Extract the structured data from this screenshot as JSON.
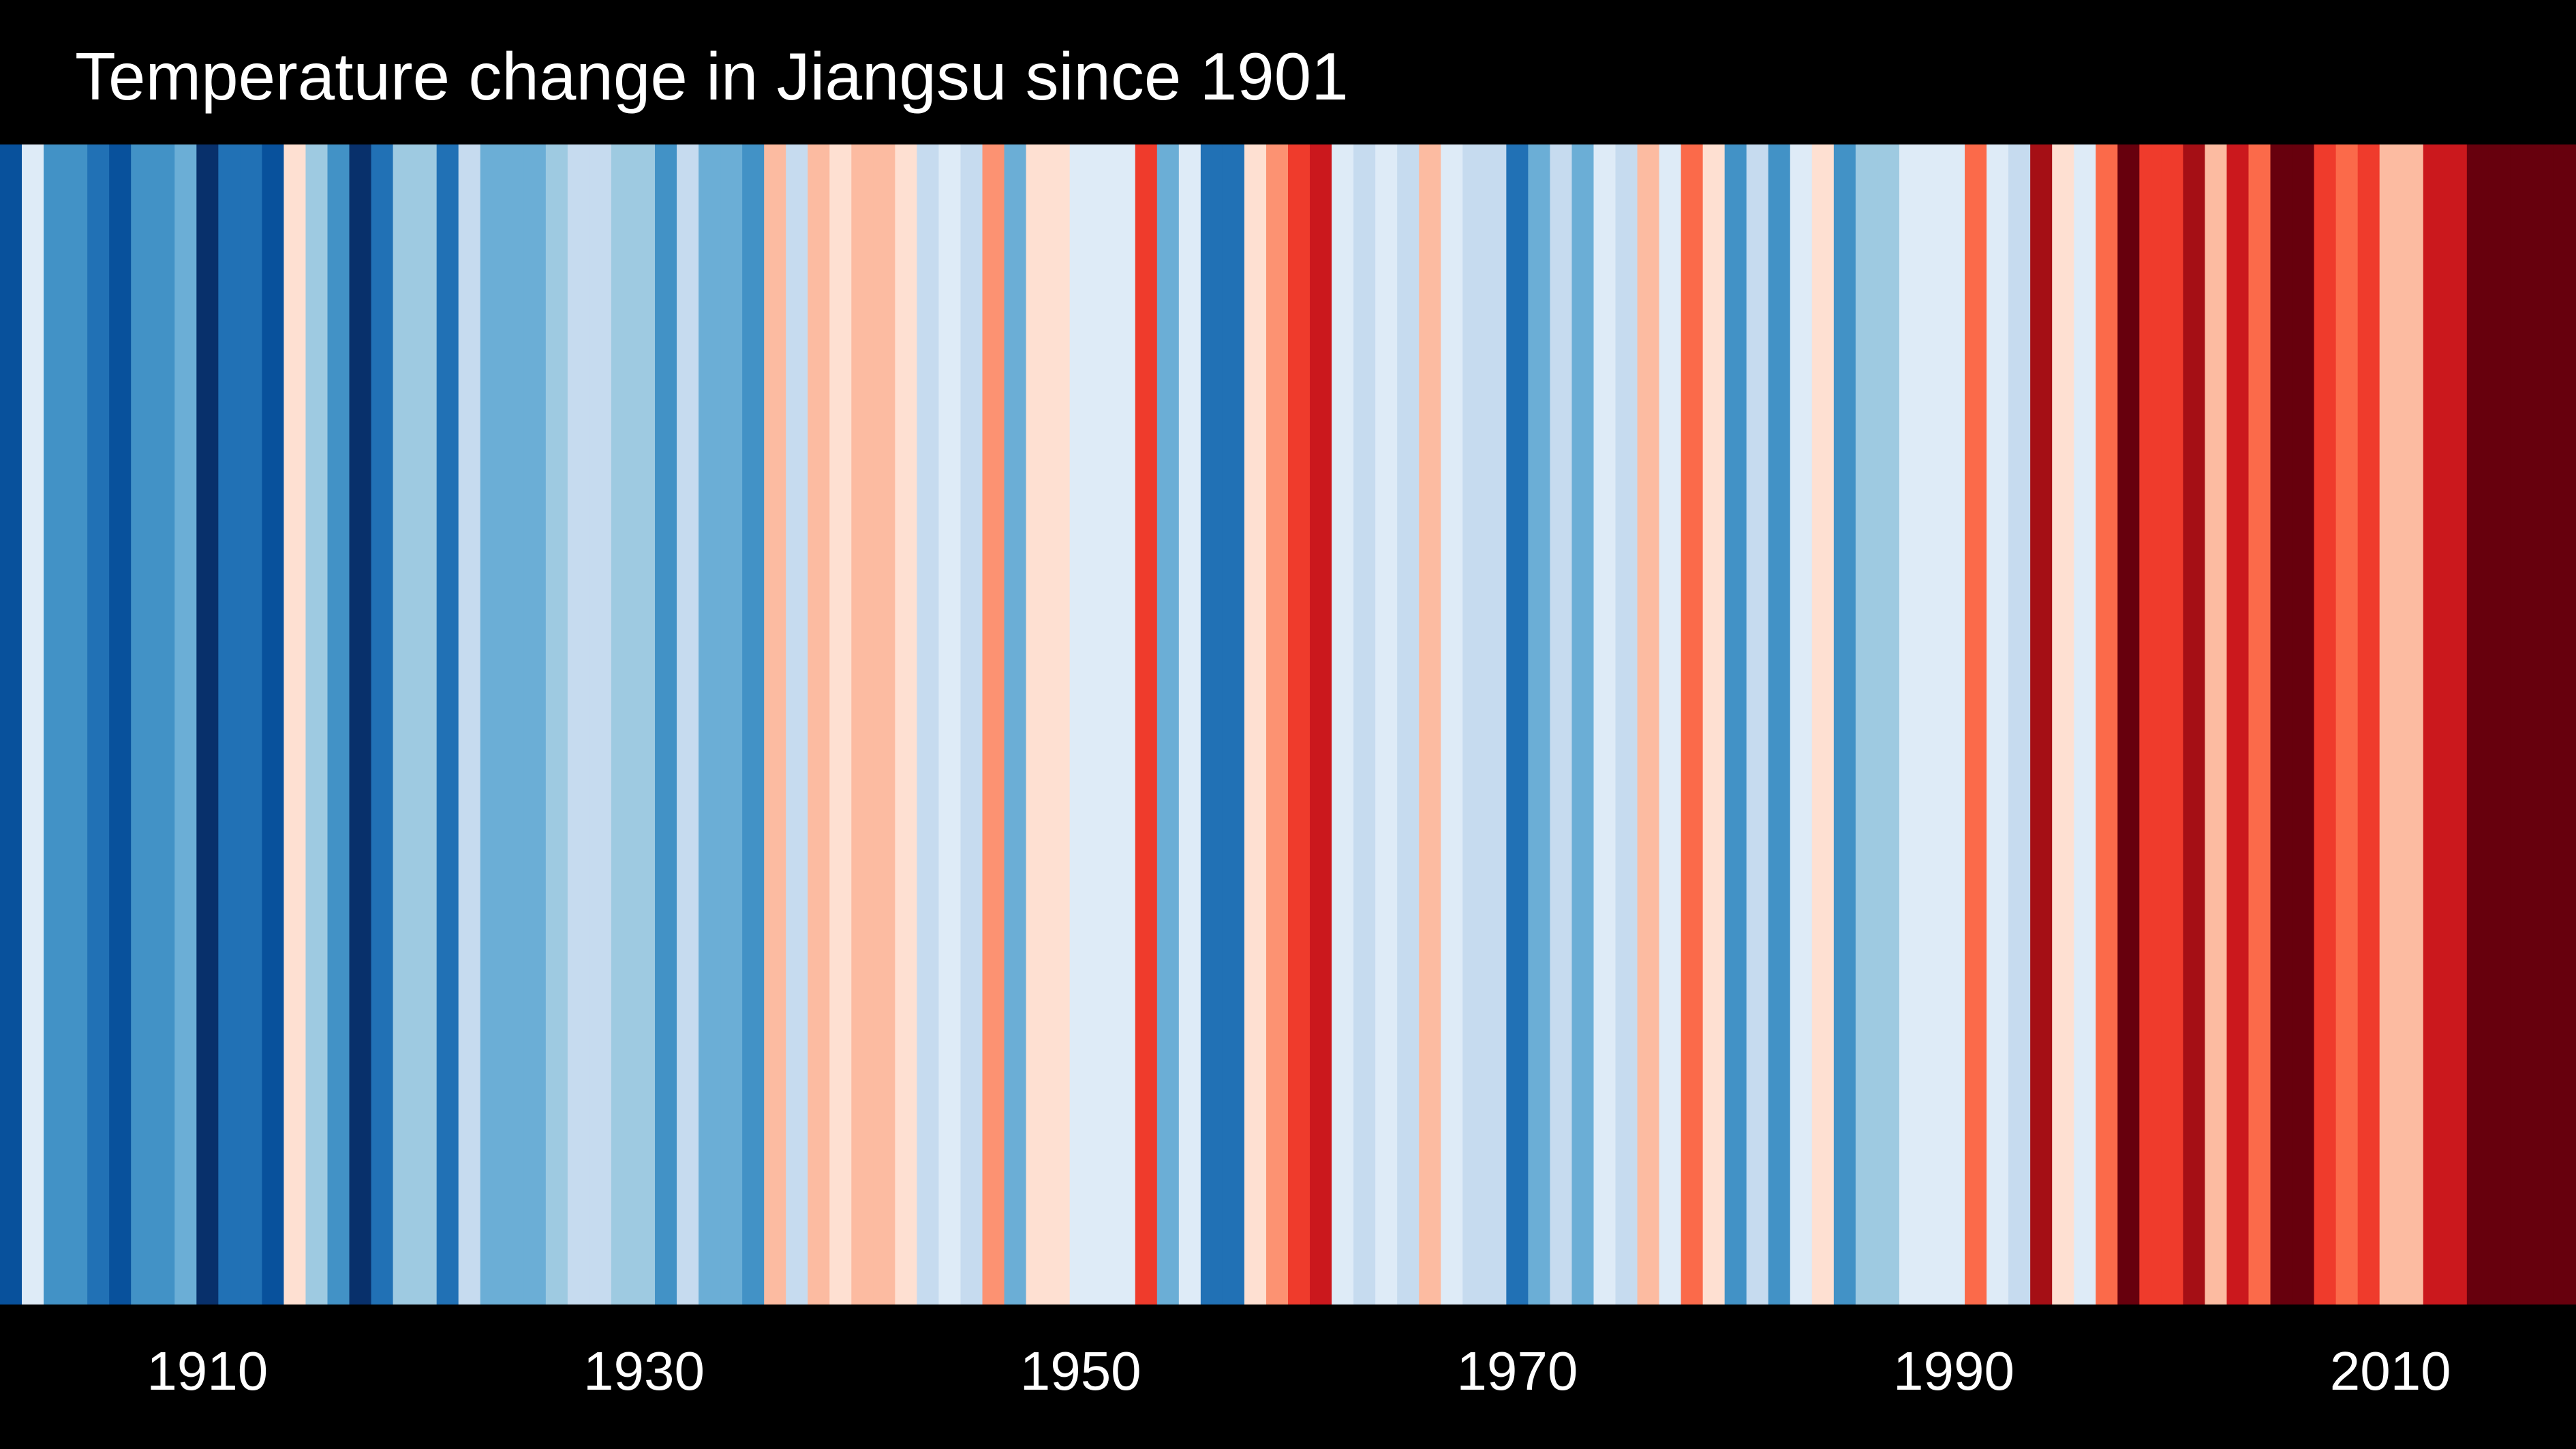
{
  "chart_data": {
    "type": "bar",
    "title": "Temperature change in Jiangsu since 1901",
    "x": [
      1901,
      1902,
      1903,
      1904,
      1905,
      1906,
      1907,
      1908,
      1909,
      1910,
      1911,
      1912,
      1913,
      1914,
      1915,
      1916,
      1917,
      1918,
      1919,
      1920,
      1921,
      1922,
      1923,
      1924,
      1925,
      1926,
      1927,
      1928,
      1929,
      1930,
      1931,
      1932,
      1933,
      1934,
      1935,
      1936,
      1937,
      1938,
      1939,
      1940,
      1941,
      1942,
      1943,
      1944,
      1945,
      1946,
      1947,
      1948,
      1949,
      1950,
      1951,
      1952,
      1953,
      1954,
      1955,
      1956,
      1957,
      1958,
      1959,
      1960,
      1961,
      1962,
      1963,
      1964,
      1965,
      1966,
      1967,
      1968,
      1969,
      1970,
      1971,
      1972,
      1973,
      1974,
      1975,
      1976,
      1977,
      1978,
      1979,
      1980,
      1981,
      1982,
      1983,
      1984,
      1985,
      1986,
      1987,
      1988,
      1989,
      1990,
      1991,
      1992,
      1993,
      1994,
      1995,
      1996,
      1997,
      1998,
      1999,
      2000,
      2001,
      2002,
      2003,
      2004,
      2005,
      2006,
      2007,
      2008,
      2009,
      2010,
      2011,
      2012,
      2013,
      2014,
      2015,
      2016,
      2017,
      2018
    ],
    "colors": [
      "#08519c",
      "#deebf7",
      "#4292c6",
      "#4292c6",
      "#2171b5",
      "#08519c",
      "#4292c6",
      "#4292c6",
      "#6baed6",
      "#08306b",
      "#2171b5",
      "#2171b5",
      "#08519c",
      "#fee0d2",
      "#9ecae1",
      "#4292c6",
      "#08306b",
      "#2171b5",
      "#9ecae1",
      "#9ecae1",
      "#2171b5",
      "#c6dbef",
      "#6baed6",
      "#6baed6",
      "#6baed6",
      "#9ecae1",
      "#c6dbef",
      "#c6dbef",
      "#9ecae1",
      "#9ecae1",
      "#4292c6",
      "#c6dbef",
      "#6baed6",
      "#6baed6",
      "#4292c6",
      "#fcbba1",
      "#c6dbef",
      "#fcbba1",
      "#fee0d2",
      "#fcbba1",
      "#fcbba1",
      "#fee0d2",
      "#c6dbef",
      "#deebf7",
      "#c6dbef",
      "#fc9272",
      "#6baed6",
      "#fee0d2",
      "#fee0d2",
      "#deebf7",
      "#deebf7",
      "#deebf7",
      "#ef3b2c",
      "#6baed6",
      "#deebf7",
      "#2171b5",
      "#2171b5",
      "#fee0d2",
      "#fc9272",
      "#ef3b2c",
      "#cb181d",
      "#deebf7",
      "#c6dbef",
      "#deebf7",
      "#c6dbef",
      "#fcbba1",
      "#deebf7",
      "#c6dbef",
      "#c6dbef",
      "#2171b5",
      "#6baed6",
      "#c6dbef",
      "#6baed6",
      "#deebf7",
      "#c6dbef",
      "#fcbba1",
      "#deebf7",
      "#fb6a4a",
      "#fee0d2",
      "#4292c6",
      "#c6dbef",
      "#4292c6",
      "#deebf7",
      "#fee0d2",
      "#4292c6",
      "#9ecae1",
      "#9ecae1",
      "#deebf7",
      "#deebf7",
      "#deebf7",
      "#fb6a4a",
      "#deebf7",
      "#c6dbef",
      "#a50f15",
      "#fee0d2",
      "#deebf7",
      "#fb6a4a",
      "#67000d",
      "#ef3b2c",
      "#ef3b2c",
      "#a50f15",
      "#fcbba1",
      "#cb181d",
      "#fb6a4a",
      "#67000d",
      "#67000d",
      "#ef3b2c",
      "#fb6a4a",
      "#ef3b2c",
      "#fcbba1",
      "#fcbba1",
      "#cb181d",
      "#cb181d",
      "#67000d",
      "#67000d",
      "#67000d",
      "#67000d",
      "#67000d"
    ],
    "xticks": [
      1910,
      1930,
      1950,
      1970,
      1990,
      2010
    ],
    "xlim": [
      1901,
      2019
    ],
    "grid": false,
    "legend": "none"
  },
  "title_text": "Temperature change in Jiangsu since 1901",
  "tick_labels": [
    "1910",
    "1930",
    "1950",
    "1970",
    "1990",
    "2010"
  ]
}
